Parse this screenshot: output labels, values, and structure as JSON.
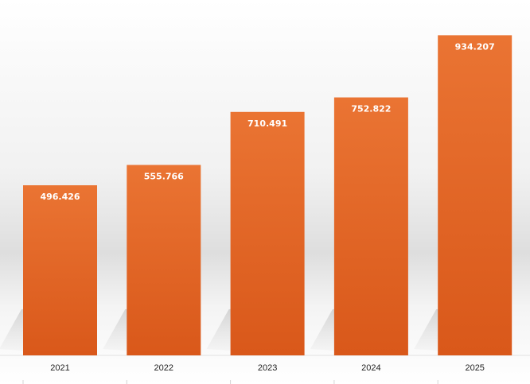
{
  "chart_data": {
    "type": "bar",
    "title": "",
    "xlabel": "",
    "ylabel": "",
    "categories": [
      "2021",
      "2022",
      "2023",
      "2024",
      "2025"
    ],
    "series": [
      {
        "values": [
          496.426,
          555.766,
          710.491,
          752.822,
          934.207
        ]
      }
    ],
    "value_labels": [
      "496.426",
      "555.766",
      "710.491",
      "752.822",
      "934.207"
    ],
    "ylim": [
      0,
      1000
    ],
    "grid": false,
    "legend": "none",
    "colors": {
      "bar_top": "#ea7433",
      "bar_bottom": "#d9581a",
      "label": "#ffffff"
    }
  }
}
